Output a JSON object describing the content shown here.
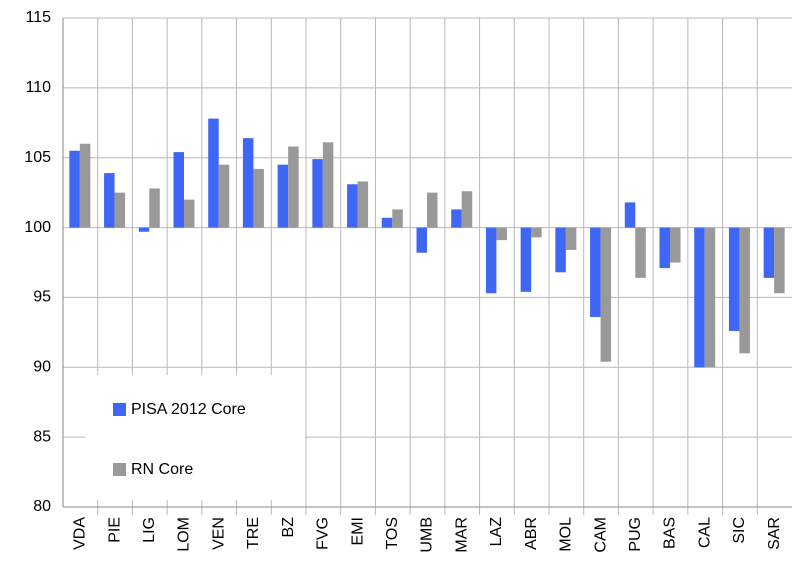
{
  "chart_data": {
    "type": "bar",
    "categories": [
      "VDA",
      "PIE",
      "LIG",
      "LOM",
      "VEN",
      "TRE",
      "BZ",
      "FVG",
      "EMI",
      "TOS",
      "UMB",
      "MAR",
      "LAZ",
      "ABR",
      "MOL",
      "CAM",
      "PUG",
      "BAS",
      "CAL",
      "SIC",
      "SAR"
    ],
    "series": [
      {
        "name": "PISA 2012 Core",
        "color": "#3f66f4",
        "values": [
          105.5,
          103.9,
          99.7,
          105.4,
          107.8,
          106.4,
          104.5,
          104.9,
          103.1,
          100.7,
          98.2,
          101.3,
          95.3,
          95.4,
          96.8,
          93.6,
          101.8,
          97.1,
          90.0,
          92.6,
          96.4
        ]
      },
      {
        "name": "RN Core",
        "color": "#999999",
        "values": [
          106.0,
          102.5,
          102.8,
          102.0,
          104.5,
          104.2,
          105.8,
          106.1,
          103.3,
          101.3,
          102.5,
          102.6,
          99.1,
          99.3,
          98.4,
          90.4,
          96.4,
          97.5,
          90.0,
          91.0,
          95.3
        ]
      }
    ],
    "baseline": 100,
    "ylim": [
      80,
      115
    ],
    "yticks": [
      80,
      85,
      90,
      95,
      100,
      105,
      110,
      115
    ],
    "grid": true,
    "legend": "lower-left"
  }
}
